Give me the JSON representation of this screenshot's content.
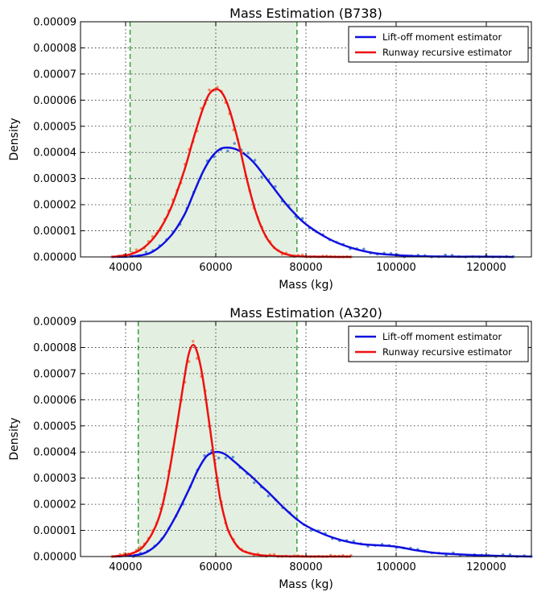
{
  "chart_data": [
    {
      "type": "line",
      "title": "Mass Estimation (B738)",
      "xlabel": "Mass (kg)",
      "ylabel": "Density",
      "xlim": [
        30000,
        130000
      ],
      "ylim": [
        0,
        9e-05
      ],
      "xticks": [
        40000,
        60000,
        80000,
        100000,
        120000
      ],
      "yticks": [
        "0.00000",
        "0.00001",
        "0.00002",
        "0.00003",
        "0.00004",
        "0.00005",
        "0.00006",
        "0.00007",
        "0.00008",
        "0.00009"
      ],
      "grid": true,
      "legend_position": "top-right",
      "shaded_region": {
        "x0": 41000,
        "x1": 78000,
        "color": "#e3efe0",
        "edge_color": "#2a9a2a"
      },
      "series": [
        {
          "name": "Lift-off moment estimator",
          "color": "#1010e0",
          "scatter_color": "#5b8fd0",
          "x": [
            37000,
            42000,
            46000,
            50000,
            53000,
            55000,
            57000,
            59000,
            61000,
            63000,
            65000,
            67000,
            69000,
            71000,
            73000,
            75000,
            77000,
            80000,
            85000,
            90000,
            95000,
            100000,
            105000,
            110000,
            115000,
            120000,
            126000
          ],
          "y": [
            0.0,
            3e-07,
            2e-06,
            8e-06,
            1.6e-05,
            2.4e-05,
            3.2e-05,
            3.8e-05,
            4.13e-05,
            4.18e-05,
            4.08e-05,
            3.85e-05,
            3.5e-05,
            3.05e-05,
            2.6e-05,
            2.15e-05,
            1.75e-05,
            1.25e-05,
            7e-06,
            3.5e-06,
            1.5e-06,
            7e-07,
            3e-07,
            1.5e-07,
            1e-07,
            1e-07,
            0.0
          ]
        },
        {
          "name": "Runway recursive estimator",
          "color": "#ee1111",
          "scatter_color": "#f08a5a",
          "x": [
            37000,
            41000,
            44000,
            47000,
            50000,
            53000,
            55000,
            57000,
            58500,
            60000,
            61500,
            63000,
            65000,
            67000,
            69000,
            71000,
            73000,
            75000,
            77000,
            79000,
            82000,
            86000,
            90000
          ],
          "y": [
            0.0,
            1e-06,
            3.5e-06,
            9e-06,
            1.85e-05,
            3.3e-05,
            4.5e-05,
            5.6e-05,
            6.22e-05,
            6.42e-05,
            6.25e-05,
            5.65e-05,
            4.4e-05,
            2.9e-05,
            1.65e-05,
            8.2e-06,
            3.5e-06,
            1.4e-06,
            5e-07,
            2e-07,
            1e-07,
            0.0,
            0.0
          ]
        }
      ]
    },
    {
      "type": "line",
      "title": "Mass Estimation (A320)",
      "xlabel": "Mass (kg)",
      "ylabel": "Density",
      "xlim": [
        30000,
        130000
      ],
      "ylim": [
        0,
        9e-05
      ],
      "xticks": [
        40000,
        60000,
        80000,
        100000,
        120000
      ],
      "yticks": [
        "0.00000",
        "0.00001",
        "0.00002",
        "0.00003",
        "0.00004",
        "0.00005",
        "0.00006",
        "0.00007",
        "0.00008",
        "0.00009"
      ],
      "grid": true,
      "legend_position": "top-right",
      "shaded_region": {
        "x0": 42800,
        "x1": 78000,
        "color": "#e3efe0",
        "edge_color": "#2a9a2a"
      },
      "series": [
        {
          "name": "Lift-off moment estimator",
          "color": "#1010e0",
          "scatter_color": "#5b8fd0",
          "x": [
            37000,
            42000,
            45000,
            48000,
            51000,
            54000,
            56000,
            58000,
            60000,
            62000,
            64000,
            66000,
            68000,
            70000,
            72000,
            74000,
            76000,
            78000,
            80000,
            84000,
            88000,
            92000,
            96000,
            100000,
            104000,
            108000,
            112000,
            118000,
            124000,
            130000
          ],
          "y": [
            0.0,
            5e-07,
            2e-06,
            6.5e-06,
            1.5e-05,
            2.55e-05,
            3.3e-05,
            3.85e-05,
            4e-05,
            3.92e-05,
            3.65e-05,
            3.35e-05,
            3.05e-05,
            2.72e-05,
            2.4e-05,
            2.05e-05,
            1.72e-05,
            1.42e-05,
            1.18e-05,
            8.5e-06,
            6.2e-06,
            4.8e-06,
            4.3e-06,
            3.8e-06,
            2.5e-06,
            1.5e-06,
            1e-06,
            5e-07,
            2e-07,
            0.0
          ]
        },
        {
          "name": "Runway recursive estimator",
          "color": "#ee1111",
          "scatter_color": "#f08a5a",
          "x": [
            37000,
            41000,
            44000,
            47000,
            49000,
            51000,
            53000,
            54000,
            55000,
            56000,
            57000,
            58000,
            59000,
            60000,
            61000,
            62000,
            63000,
            65000,
            67000,
            70000,
            73000,
            76000,
            80000,
            85000,
            90000
          ],
          "y": [
            0.0,
            1e-06,
            4e-06,
            1.3e-05,
            2.6e-05,
            4.6e-05,
            6.8e-05,
            7.75e-05,
            8.1e-05,
            7.75e-05,
            6.95e-05,
            5.8e-05,
            4.55e-05,
            3.3e-05,
            2.2e-05,
            1.45e-05,
            9e-06,
            3.5e-06,
            1.5e-06,
            5e-07,
            2e-07,
            1e-07,
            0.0,
            0.0,
            0.0
          ]
        }
      ]
    }
  ]
}
